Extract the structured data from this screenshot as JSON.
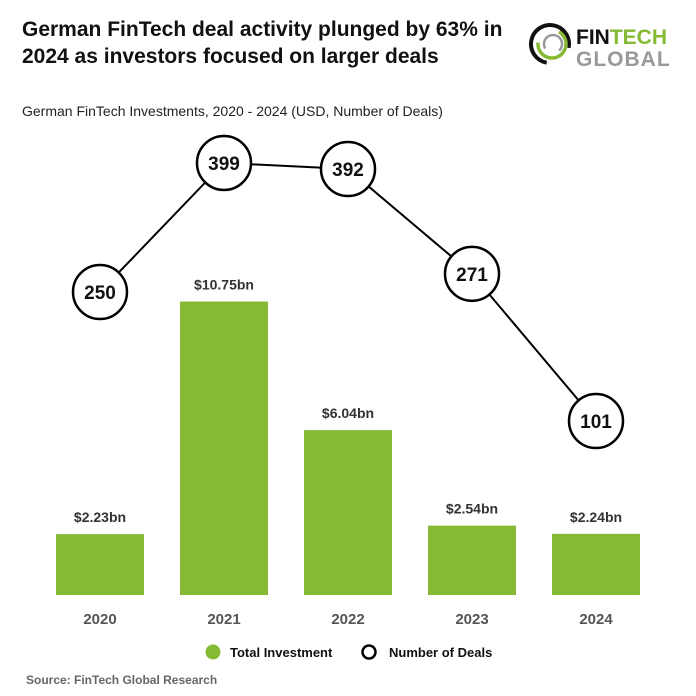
{
  "header": {
    "title": "German FinTech deal activity plunged by 63% in 2024 as investors focused on larger deals",
    "logo_text": "FINTECH GLOBAL"
  },
  "chart_data": {
    "type": "bar+line",
    "subtitle": "German FinTech Investments, 2020 - 2024 (USD, Number of Deals)",
    "categories": [
      "2020",
      "2021",
      "2022",
      "2023",
      "2024"
    ],
    "series": [
      {
        "name": "Total Investment",
        "type": "bar",
        "values": [
          2.23,
          10.75,
          6.04,
          2.54,
          2.24
        ],
        "labels": [
          "$2.23bn",
          "$10.75bn",
          "$6.04bn",
          "$2.54bn",
          "$2.24bn"
        ],
        "color": "#86b934"
      },
      {
        "name": "Number of Deals",
        "type": "line",
        "values": [
          250,
          399,
          392,
          271,
          101
        ],
        "color": "#000000"
      }
    ],
    "legend": "bottom",
    "grid": false
  },
  "footer": {
    "source": "Source: FinTech Global Research"
  }
}
